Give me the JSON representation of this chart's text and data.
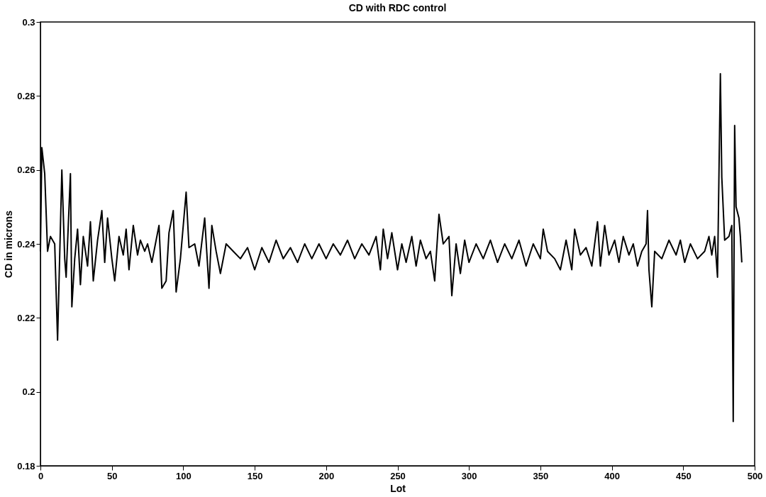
{
  "chart_data": {
    "type": "line",
    "title": "CD with RDC control",
    "xlabel": "Lot",
    "ylabel": "CD in microns",
    "xlim": [
      0,
      500
    ],
    "xticks": [
      0,
      50,
      100,
      150,
      200,
      250,
      300,
      350,
      400,
      450,
      500
    ],
    "ylim": [
      0.18,
      0.3
    ],
    "yticks": [
      0.18,
      0.2,
      0.22,
      0.24,
      0.26,
      0.28,
      0.3
    ],
    "grid": false,
    "marker": "none",
    "line_style": "solid",
    "series": [
      {
        "color": "#000000",
        "x": [
          0,
          1,
          3,
          5,
          7,
          10,
          12,
          15,
          17,
          18,
          21,
          22,
          24,
          26,
          28,
          30,
          33,
          35,
          37,
          40,
          43,
          45,
          47,
          50,
          52,
          55,
          58,
          60,
          62,
          65,
          68,
          70,
          73,
          75,
          78,
          80,
          83,
          85,
          88,
          90,
          93,
          95,
          98,
          102,
          104,
          108,
          111,
          115,
          118,
          120,
          123,
          126,
          130,
          135,
          140,
          145,
          150,
          155,
          160,
          165,
          170,
          175,
          180,
          185,
          190,
          195,
          200,
          205,
          210,
          215,
          220,
          225,
          230,
          235,
          238,
          240,
          243,
          246,
          250,
          253,
          256,
          260,
          263,
          266,
          270,
          273,
          276,
          279,
          282,
          286,
          288,
          291,
          294,
          297,
          300,
          305,
          310,
          315,
          320,
          325,
          330,
          335,
          340,
          345,
          350,
          352,
          355,
          360,
          364,
          368,
          372,
          374,
          378,
          382,
          386,
          390,
          392,
          395,
          398,
          402,
          405,
          408,
          412,
          415,
          418,
          421,
          424,
          425,
          426,
          428,
          430,
          435,
          440,
          445,
          448,
          451,
          455,
          460,
          465,
          468,
          470,
          472,
          474,
          476,
          477,
          479,
          482,
          484,
          485,
          486,
          487,
          489,
          490,
          491
        ],
        "values": [
          0.238,
          0.266,
          0.259,
          0.238,
          0.242,
          0.24,
          0.214,
          0.26,
          0.236,
          0.231,
          0.259,
          0.223,
          0.236,
          0.244,
          0.229,
          0.242,
          0.234,
          0.246,
          0.23,
          0.241,
          0.249,
          0.235,
          0.247,
          0.236,
          0.23,
          0.242,
          0.237,
          0.244,
          0.233,
          0.245,
          0.237,
          0.241,
          0.238,
          0.24,
          0.235,
          0.239,
          0.245,
          0.228,
          0.23,
          0.243,
          0.249,
          0.227,
          0.236,
          0.254,
          0.239,
          0.24,
          0.234,
          0.247,
          0.228,
          0.245,
          0.238,
          0.232,
          0.24,
          0.238,
          0.236,
          0.239,
          0.233,
          0.239,
          0.235,
          0.241,
          0.236,
          0.239,
          0.235,
          0.24,
          0.236,
          0.24,
          0.236,
          0.24,
          0.237,
          0.241,
          0.236,
          0.24,
          0.237,
          0.242,
          0.233,
          0.244,
          0.236,
          0.243,
          0.233,
          0.24,
          0.235,
          0.242,
          0.234,
          0.241,
          0.236,
          0.238,
          0.23,
          0.248,
          0.24,
          0.242,
          0.226,
          0.24,
          0.232,
          0.241,
          0.235,
          0.24,
          0.236,
          0.241,
          0.235,
          0.24,
          0.236,
          0.241,
          0.234,
          0.24,
          0.236,
          0.244,
          0.238,
          0.236,
          0.233,
          0.241,
          0.233,
          0.244,
          0.237,
          0.239,
          0.234,
          0.246,
          0.234,
          0.245,
          0.237,
          0.241,
          0.235,
          0.242,
          0.237,
          0.24,
          0.234,
          0.238,
          0.24,
          0.249,
          0.233,
          0.223,
          0.238,
          0.236,
          0.241,
          0.237,
          0.241,
          0.235,
          0.24,
          0.236,
          0.238,
          0.242,
          0.237,
          0.242,
          0.231,
          0.286,
          0.258,
          0.241,
          0.242,
          0.245,
          0.192,
          0.272,
          0.25,
          0.247,
          0.242,
          0.235
        ]
      }
    ]
  }
}
